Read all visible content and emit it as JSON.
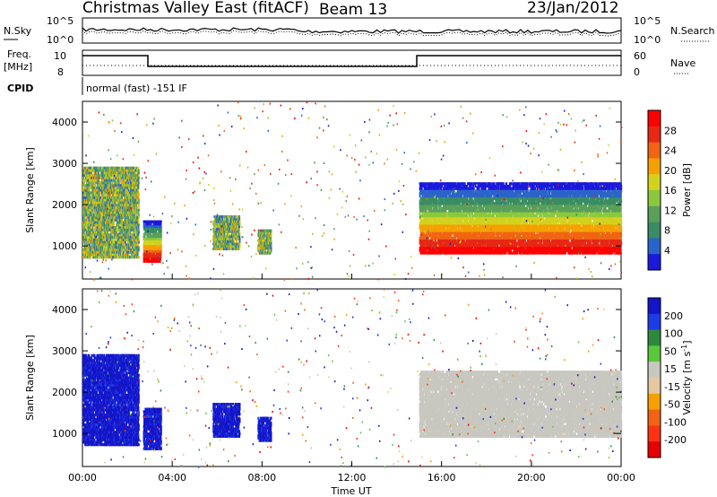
{
  "header": {
    "title": "Christmas Valley East (fitACF)",
    "beam": "Beam 13",
    "date": "23/Jan/2012"
  },
  "top_panels": {
    "nsky_label": "N.Sky",
    "nsearch_label": "N.Search",
    "freq_label_1": "Freq.",
    "freq_label_2": "[MHz]",
    "nave_label": "Nave",
    "cpid_label": "CPID",
    "cpid_text": "normal (fast) -151 IF",
    "noise_ticks": [
      "10^5",
      "10^0"
    ],
    "freq_ticks": [
      "10",
      "8"
    ],
    "nave_ticks": [
      "60",
      "0"
    ]
  },
  "colors": {
    "power": [
      "#1a1adc",
      "#2b64c8",
      "#3a8c64",
      "#5aa05a",
      "#8cc83c",
      "#d2d21e",
      "#f5a000",
      "#f06414",
      "#e62814",
      "#ff0000"
    ],
    "velocity": [
      "#1414c8",
      "#1e3ce6",
      "#2d8a3c",
      "#5ac83c",
      "#c8c8c0",
      "#e6c8a0",
      "#f5a000",
      "#f06414",
      "#ff3214",
      "#e60000"
    ]
  },
  "chart_data": [
    {
      "type": "heatmap",
      "name": "power",
      "xlabel": "Time UT",
      "ylabel": "Slant Range [km]",
      "x_ticks": [
        "00:00",
        "04:00",
        "08:00",
        "12:00",
        "16:00",
        "20:00",
        "00:00"
      ],
      "y_ticks": [
        1000,
        2000,
        3000,
        4000
      ],
      "ylim": [
        200,
        4500
      ],
      "colorbar_label": "Power [dB]",
      "colorbar_ticks": [
        4,
        8,
        12,
        16,
        20,
        24,
        28
      ],
      "regions": [
        {
          "t0": 0.0,
          "t1": 2.5,
          "r0": 700,
          "r1": 2900,
          "level": "mixed"
        },
        {
          "t0": 2.7,
          "t1": 3.5,
          "r0": 600,
          "r1": 1600,
          "level": "high"
        },
        {
          "t0": 5.8,
          "t1": 7.0,
          "r0": 900,
          "r1": 1700,
          "level": "mid"
        },
        {
          "t0": 7.8,
          "t1": 8.4,
          "r0": 800,
          "r1": 1400,
          "level": "mid"
        },
        {
          "t0": 15.0,
          "t1": 24.0,
          "r0": 800,
          "r1": 2500,
          "level": "high"
        }
      ]
    },
    {
      "type": "heatmap",
      "name": "velocity",
      "xlabel": "Time UT",
      "ylabel": "Slant Range [km]",
      "x_ticks": [
        "00:00",
        "04:00",
        "08:00",
        "12:00",
        "16:00",
        "20:00",
        "00:00"
      ],
      "y_ticks": [
        1000,
        2000,
        3000,
        4000
      ],
      "ylim": [
        200,
        4500
      ],
      "colorbar_label": "Velocity [m s^-1]",
      "colorbar_ticks": [
        200,
        100,
        50,
        15,
        -15,
        -50,
        -100,
        -200
      ],
      "regions": [
        {
          "t0": 0.0,
          "t1": 2.5,
          "r0": 700,
          "r1": 2900,
          "level": "toward"
        },
        {
          "t0": 2.7,
          "t1": 3.5,
          "r0": 600,
          "r1": 1600,
          "level": "toward"
        },
        {
          "t0": 5.8,
          "t1": 7.0,
          "r0": 900,
          "r1": 1700,
          "level": "toward"
        },
        {
          "t0": 7.8,
          "t1": 8.4,
          "r0": 800,
          "r1": 1400,
          "level": "toward"
        },
        {
          "t0": 15.0,
          "t1": 24.0,
          "r0": 900,
          "r1": 2500,
          "level": "ground"
        }
      ]
    }
  ]
}
